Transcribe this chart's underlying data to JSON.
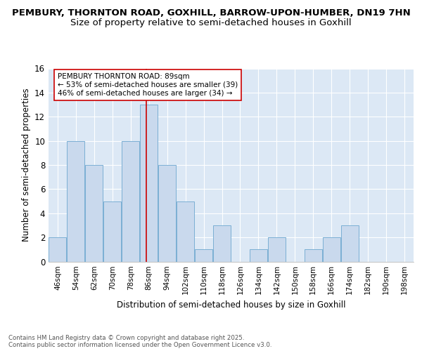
{
  "title1": "PEMBURY, THORNTON ROAD, GOXHILL, BARROW-UPON-HUMBER, DN19 7HN",
  "title2": "Size of property relative to semi-detached houses in Goxhill",
  "xlabel": "Distribution of semi-detached houses by size in Goxhill",
  "ylabel": "Number of semi-detached properties",
  "bar_edges": [
    46,
    54,
    62,
    70,
    78,
    86,
    94,
    102,
    110,
    118,
    126,
    134,
    142,
    150,
    158,
    166,
    174,
    182,
    190,
    198,
    206
  ],
  "bar_heights": [
    2,
    10,
    8,
    5,
    10,
    13,
    8,
    5,
    1,
    3,
    0,
    1,
    2,
    0,
    1,
    2,
    3,
    0,
    0,
    0
  ],
  "bar_color": "#c9d9ed",
  "bar_edge_color": "#7bafd4",
  "property_size": 89,
  "property_line_color": "#cc0000",
  "annotation_text": "PEMBURY THORNTON ROAD: 89sqm\n← 53% of semi-detached houses are smaller (39)\n46% of semi-detached houses are larger (34) →",
  "annotation_box_color": "#ffffff",
  "annotation_box_edge_color": "#cc0000",
  "ylim": [
    0,
    16
  ],
  "background_color": "#dce8f5",
  "footer_text": "Contains HM Land Registry data © Crown copyright and database right 2025.\nContains public sector information licensed under the Open Government Licence v3.0.",
  "footer_color": "#555555",
  "title_fontsize": 9.5,
  "subtitle_fontsize": 9.5,
  "tick_label_fontsize": 7.5,
  "ylabel_fontsize": 8.5,
  "xlabel_fontsize": 8.5,
  "annotation_fontsize": 7.5
}
